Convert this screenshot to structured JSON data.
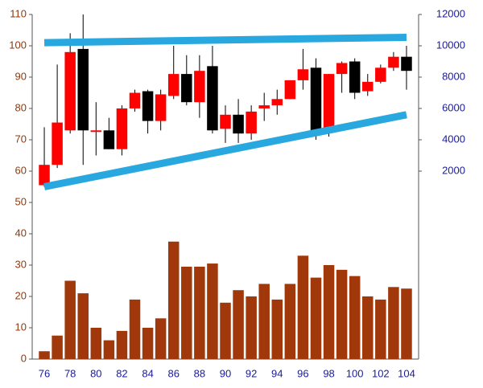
{
  "chart_data": {
    "type": "candlestick",
    "categories": [
      "76",
      null,
      "78",
      null,
      "80",
      null,
      "82",
      null,
      "84",
      null,
      "86",
      null,
      "88",
      null,
      "90",
      null,
      "92",
      null,
      "94",
      null,
      "96",
      null,
      "98",
      null,
      "100",
      null,
      "102",
      null,
      "104"
    ],
    "open": [
      55.5,
      62,
      73,
      99,
      72.5,
      73,
      67,
      80,
      85.5,
      76,
      84,
      91,
      82,
      93.5,
      73.5,
      78,
      72,
      80,
      81,
      83,
      89,
      93,
      73,
      91,
      95,
      85.5,
      88.5,
      93,
      96.5
    ],
    "high": [
      74,
      94,
      104,
      110,
      82,
      77,
      81,
      86,
      86,
      86,
      100,
      97,
      97,
      100,
      81,
      83,
      81,
      85,
      86,
      89,
      99,
      96,
      91,
      95,
      96,
      91,
      94,
      98,
      100
    ],
    "low": [
      55,
      61,
      72,
      62,
      65,
      67,
      65,
      79,
      72,
      73,
      83,
      81,
      77,
      72,
      69,
      69,
      70,
      76,
      78,
      83,
      86,
      70,
      71,
      85,
      83,
      84,
      88,
      92,
      86
    ],
    "close": [
      62,
      75.5,
      98,
      73,
      73,
      67,
      80,
      85,
      76,
      84.5,
      91,
      82,
      92,
      73,
      78,
      72,
      79,
      81,
      83,
      89,
      92.5,
      73,
      91,
      94.5,
      85,
      88.5,
      93,
      96.5,
      92
    ],
    "volume": [
      2.5,
      7.5,
      25,
      21,
      10,
      6,
      9,
      19,
      10,
      13,
      37.5,
      29.5,
      29.5,
      30.5,
      18,
      22,
      20,
      24,
      19,
      24,
      33,
      26,
      30,
      28.5,
      26.5,
      20,
      19,
      23,
      22.5
    ],
    "up_color": "#ff0000",
    "down_color": "#000000",
    "volume_color": "#a0380c",
    "trendlines": [
      {
        "start": 101,
        "end": 102.7,
        "color": "#29a8e0"
      },
      {
        "start": 55,
        "end": 78,
        "color": "#29a8e0"
      }
    ],
    "ylim": [
      0,
      110
    ],
    "yticks": [
      0,
      10,
      20,
      30,
      40,
      50,
      60,
      70,
      80,
      90,
      100,
      110
    ],
    "y2lim": [
      -10000,
      12000
    ],
    "y2ticks": [
      2000,
      4000,
      6000,
      8000,
      10000,
      12000
    ]
  }
}
